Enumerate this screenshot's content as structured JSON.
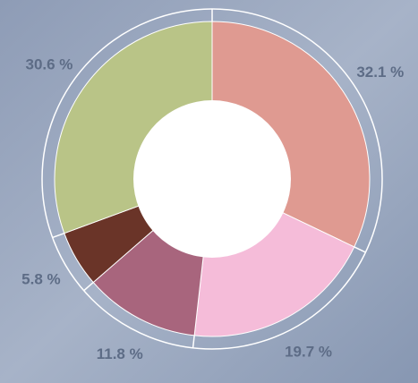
{
  "chart_data": {
    "type": "donut",
    "categories": [
      null,
      null,
      null,
      null,
      null
    ],
    "values": [
      32.1,
      19.7,
      11.8,
      5.8,
      30.6
    ],
    "value_labels": [
      "32.1 %",
      "19.7 %",
      "11.8 %",
      "5.8 %",
      "30.6 %"
    ],
    "colors": [
      "#df9a91",
      "#f5bcd9",
      "#a8657d",
      "#6a3428",
      "#b9c487"
    ]
  }
}
